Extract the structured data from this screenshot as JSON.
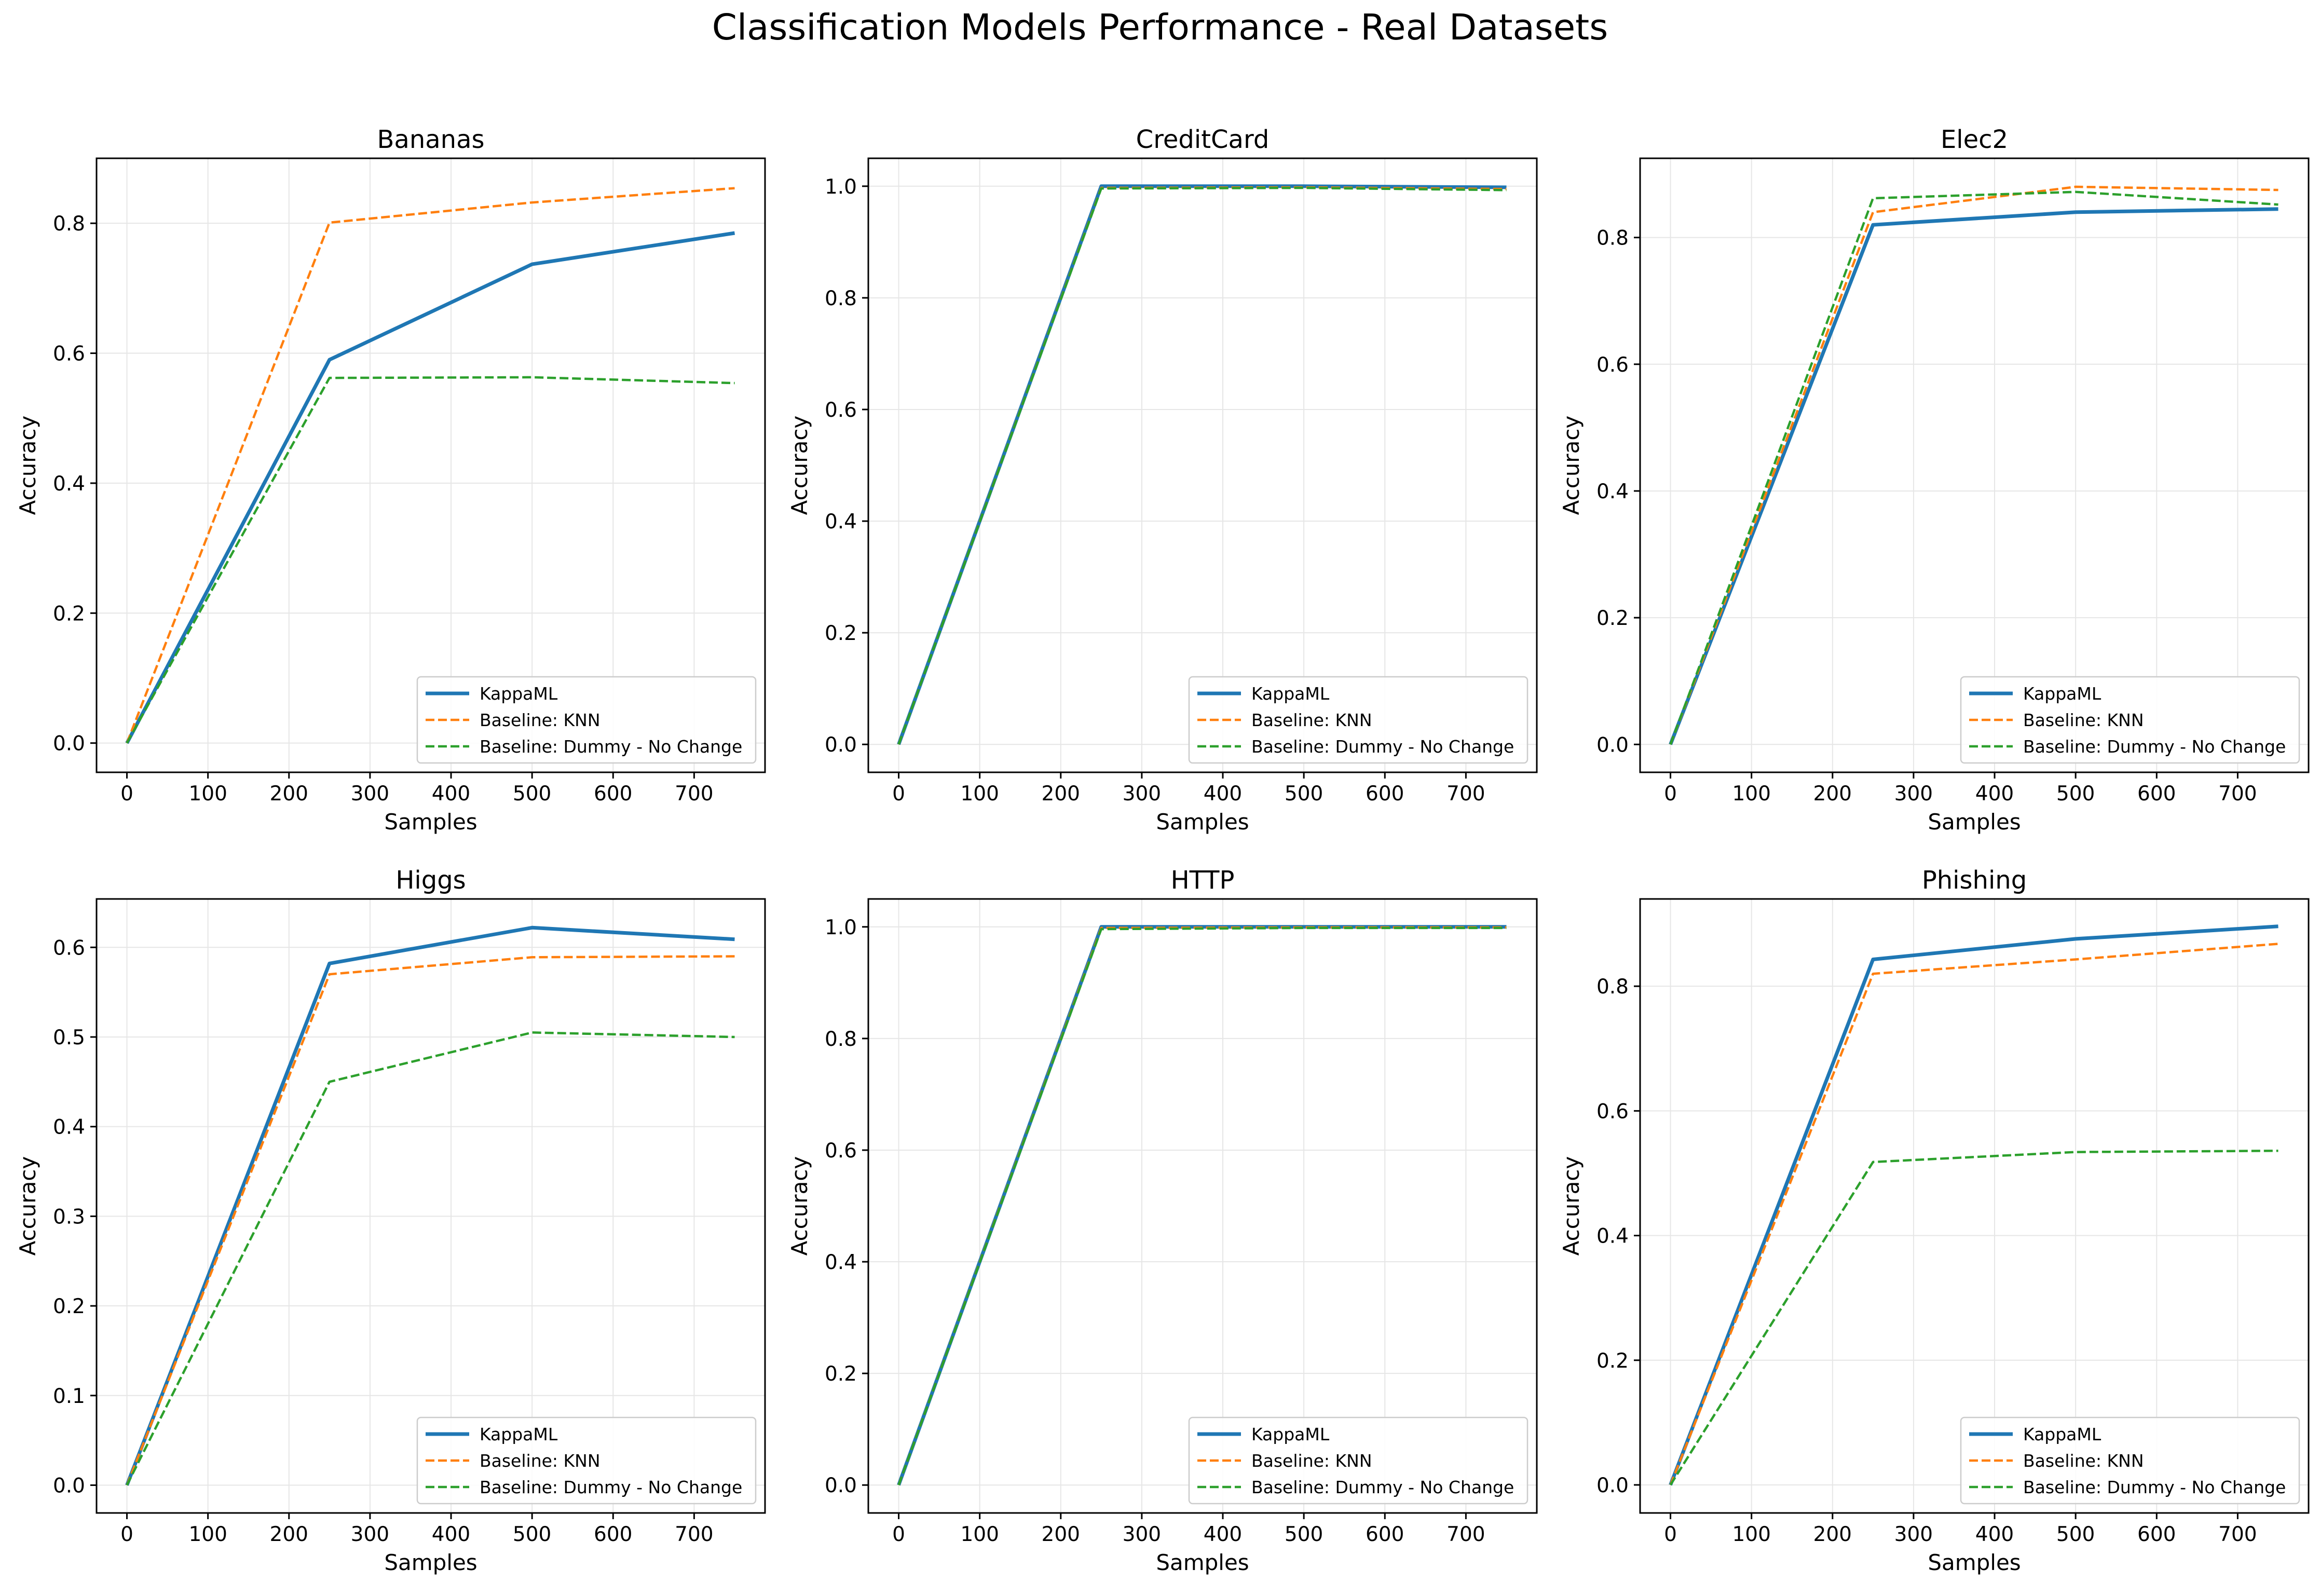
{
  "figure": {
    "title": "Classification Models Performance - Real Datasets"
  },
  "legend_entries": [
    "KappaML",
    "Baseline: KNN",
    "Baseline: Dummy - No Change"
  ],
  "colors": {
    "kappaml": "#1f77b4",
    "knn": "#ff7f0e",
    "dummy": "#2ca02c",
    "grid": "#e6e6e6",
    "legend_border": "#cccccc"
  },
  "chart_data": [
    {
      "type": "line",
      "title": "Bananas",
      "xlabel": "Samples",
      "ylabel": "Accuracy",
      "x": [
        0,
        250,
        500,
        750
      ],
      "xlim": [
        -37.5,
        787.5
      ],
      "ylim": [
        -0.045,
        0.9
      ],
      "grid": true,
      "legend": "lower-right",
      "xticks": [
        0,
        100,
        200,
        300,
        400,
        500,
        600,
        700
      ],
      "yticks": [
        0.0,
        0.2,
        0.4,
        0.6,
        0.8
      ],
      "ytick_decimals": 1,
      "series": [
        {
          "name": "KappaML",
          "values": [
            0.0,
            0.59,
            0.737,
            0.785
          ]
        },
        {
          "name": "Baseline: KNN",
          "values": [
            0.0,
            0.801,
            0.832,
            0.854
          ]
        },
        {
          "name": "Baseline: Dummy - No Change",
          "values": [
            0.0,
            0.562,
            0.563,
            0.554
          ]
        }
      ]
    },
    {
      "type": "line",
      "title": "CreditCard",
      "xlabel": "Samples",
      "ylabel": "Accuracy",
      "x": [
        0,
        250,
        500,
        750
      ],
      "xlim": [
        -37.5,
        787.5
      ],
      "ylim": [
        -0.05,
        1.05
      ],
      "grid": true,
      "legend": "lower-right",
      "xticks": [
        0,
        100,
        200,
        300,
        400,
        500,
        600,
        700
      ],
      "yticks": [
        0.0,
        0.2,
        0.4,
        0.6,
        0.8,
        1.0
      ],
      "ytick_decimals": 1,
      "series": [
        {
          "name": "KappaML",
          "values": [
            0.0,
            1.0,
            1.0,
            0.998
          ]
        },
        {
          "name": "Baseline: KNN",
          "values": [
            0.0,
            0.997,
            0.998,
            0.995
          ]
        },
        {
          "name": "Baseline: Dummy - No Change",
          "values": [
            0.0,
            0.996,
            0.997,
            0.993
          ]
        }
      ]
    },
    {
      "type": "line",
      "title": "Elec2",
      "xlabel": "Samples",
      "ylabel": "Accuracy",
      "x": [
        0,
        250,
        500,
        750
      ],
      "xlim": [
        -37.5,
        787.5
      ],
      "ylim": [
        -0.044,
        0.925
      ],
      "grid": true,
      "legend": "lower-right",
      "xticks": [
        0,
        100,
        200,
        300,
        400,
        500,
        600,
        700
      ],
      "yticks": [
        0.0,
        0.2,
        0.4,
        0.6,
        0.8
      ],
      "ytick_decimals": 1,
      "series": [
        {
          "name": "KappaML",
          "values": [
            0.0,
            0.82,
            0.84,
            0.845
          ]
        },
        {
          "name": "Baseline: KNN",
          "values": [
            0.0,
            0.84,
            0.88,
            0.875
          ]
        },
        {
          "name": "Baseline: Dummy - No Change",
          "values": [
            0.0,
            0.862,
            0.872,
            0.852
          ]
        }
      ]
    },
    {
      "type": "line",
      "title": "Higgs",
      "xlabel": "Samples",
      "ylabel": "Accuracy",
      "x": [
        0,
        250,
        500,
        750
      ],
      "xlim": [
        -37.5,
        787.5
      ],
      "ylim": [
        -0.031,
        0.654
      ],
      "grid": true,
      "legend": "lower-right",
      "xticks": [
        0,
        100,
        200,
        300,
        400,
        500,
        600,
        700
      ],
      "yticks": [
        0.0,
        0.1,
        0.2,
        0.3,
        0.4,
        0.5,
        0.6
      ],
      "ytick_decimals": 1,
      "series": [
        {
          "name": "KappaML",
          "values": [
            0.0,
            0.582,
            0.622,
            0.609
          ]
        },
        {
          "name": "Baseline: KNN",
          "values": [
            0.0,
            0.57,
            0.589,
            0.59
          ]
        },
        {
          "name": "Baseline: Dummy - No Change",
          "values": [
            0.0,
            0.45,
            0.505,
            0.5
          ]
        }
      ]
    },
    {
      "type": "line",
      "title": "HTTP",
      "xlabel": "Samples",
      "ylabel": "Accuracy",
      "x": [
        0,
        250,
        500,
        750
      ],
      "xlim": [
        -37.5,
        787.5
      ],
      "ylim": [
        -0.05,
        1.05
      ],
      "grid": true,
      "legend": "lower-right",
      "xticks": [
        0,
        100,
        200,
        300,
        400,
        500,
        600,
        700
      ],
      "yticks": [
        0.0,
        0.2,
        0.4,
        0.6,
        0.8,
        1.0
      ],
      "ytick_decimals": 1,
      "series": [
        {
          "name": "KappaML",
          "values": [
            0.0,
            1.0,
            1.0,
            1.0
          ]
        },
        {
          "name": "Baseline: KNN",
          "values": [
            0.0,
            0.998,
            0.999,
            0.999
          ]
        },
        {
          "name": "Baseline: Dummy - No Change",
          "values": [
            0.0,
            0.996,
            0.998,
            0.998
          ]
        }
      ]
    },
    {
      "type": "line",
      "title": "Phishing",
      "xlabel": "Samples",
      "ylabel": "Accuracy",
      "x": [
        0,
        250,
        500,
        750
      ],
      "xlim": [
        -37.5,
        787.5
      ],
      "ylim": [
        -0.045,
        0.94
      ],
      "grid": true,
      "legend": "lower-right",
      "xticks": [
        0,
        100,
        200,
        300,
        400,
        500,
        600,
        700
      ],
      "yticks": [
        0.0,
        0.2,
        0.4,
        0.6,
        0.8
      ],
      "ytick_decimals": 1,
      "series": [
        {
          "name": "KappaML",
          "values": [
            0.0,
            0.843,
            0.876,
            0.896
          ]
        },
        {
          "name": "Baseline: KNN",
          "values": [
            0.0,
            0.82,
            0.843,
            0.868
          ]
        },
        {
          "name": "Baseline: Dummy - No Change",
          "values": [
            0.0,
            0.518,
            0.534,
            0.536
          ]
        }
      ]
    }
  ]
}
